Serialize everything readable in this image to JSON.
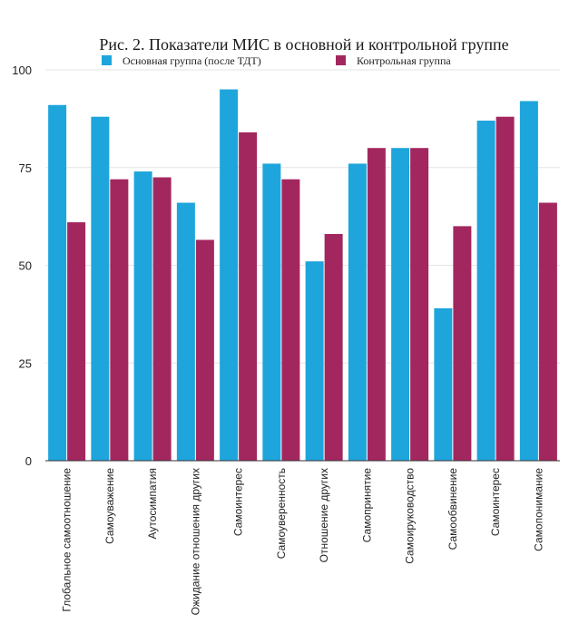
{
  "chart_data": {
    "type": "bar",
    "title": "Рис. 2. Показатели МИС в основной и контрольной группе",
    "xlabel": "",
    "ylabel": "",
    "ylim": [
      0,
      100
    ],
    "yticks": [
      "0",
      "25",
      "50",
      "75",
      "100"
    ],
    "ytick_values": [
      0,
      25,
      50,
      75,
      100
    ],
    "grid": true,
    "legend_position": "top",
    "categories": [
      "Глобальное самоотношение",
      "Самоуважение",
      "Аутосимпатия",
      "Ожидание отношения других",
      "Самоинтерес",
      "Самоуверенность",
      "Отношение других",
      "Самопринятие",
      "Самоируководство",
      "Самообвинение",
      "Самоинтерес",
      "Самопонимание"
    ],
    "series": [
      {
        "name": "Основная группа (после ТДТ)",
        "color": "#1ea5dc",
        "values": [
          91,
          88,
          74,
          66,
          95,
          76,
          51,
          76,
          80,
          39,
          87,
          92
        ]
      },
      {
        "name": "Контрольная группа",
        "color": "#a3275f",
        "values": [
          61,
          72,
          72.5,
          56.5,
          84,
          72,
          58,
          80,
          80,
          60,
          88,
          66
        ]
      }
    ]
  }
}
